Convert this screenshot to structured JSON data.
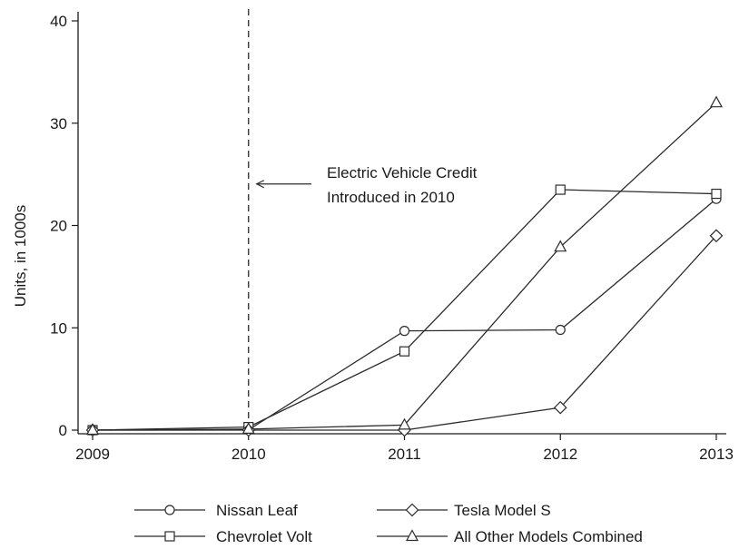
{
  "chart_data": {
    "type": "line",
    "title": "",
    "xlabel": "",
    "ylabel": "Units, in 1000s",
    "x": [
      2009,
      2010,
      2011,
      2012,
      2013
    ],
    "x_ticks": [
      "2009",
      "2010",
      "2011",
      "2012",
      "2013"
    ],
    "ylim": [
      0,
      40
    ],
    "y_ticks": [
      "0",
      "10",
      "20",
      "30",
      "40"
    ],
    "grid": false,
    "legend_position": "bottom",
    "series": [
      {
        "name": "Nissan Leaf",
        "marker": "circle",
        "values": [
          0,
          0.02,
          9.7,
          9.8,
          22.6
        ]
      },
      {
        "name": "Chevrolet Volt",
        "marker": "square",
        "values": [
          0,
          0.3,
          7.7,
          23.5,
          23.1
        ]
      },
      {
        "name": "Tesla Model S",
        "marker": "diamond",
        "values": [
          0,
          0,
          0,
          2.2,
          19.0
        ]
      },
      {
        "name": "All Other Models Combined",
        "marker": "triangle",
        "values": [
          0,
          0.1,
          0.5,
          17.9,
          32.0
        ]
      }
    ],
    "reference_line": {
      "x": 2010,
      "style": "dashed"
    },
    "annotation": {
      "lines": [
        "Electric Vehicle Credit",
        "Introduced in 2010"
      ],
      "arrow_to_x": 2010,
      "y": 24.5
    }
  },
  "colors": {
    "line": "#2b2b2b",
    "axis": "#1a1a1a",
    "background": "#ffffff"
  }
}
